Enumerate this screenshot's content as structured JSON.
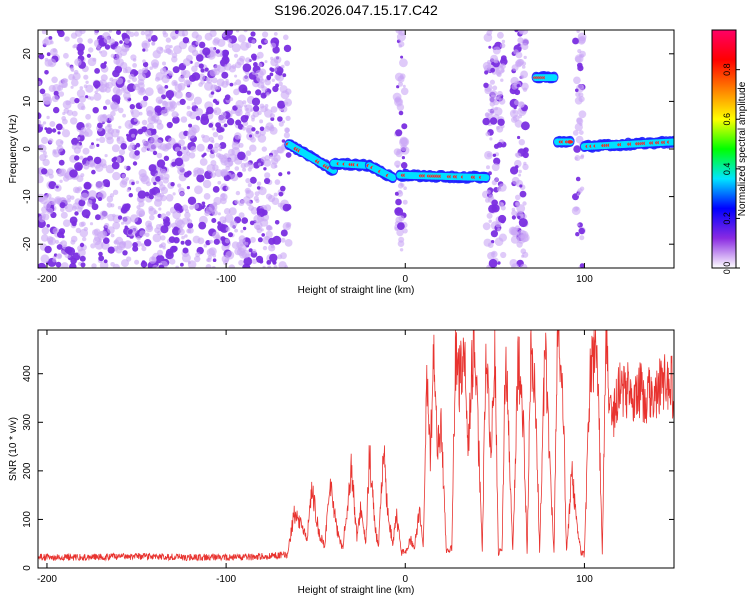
{
  "title": "S196.2026.047.15.17.C42",
  "colors": {
    "snr_line": "#e8332f",
    "track_core": "#ff2020",
    "track_halo": "#00e0ff",
    "track_edge": "#2020ff",
    "noise": "#7a2ee0",
    "noise_light": "#c9a6f5"
  },
  "chart_data": [
    {
      "type": "heatmap",
      "name": "spectrogram",
      "xlabel": "Height of straight line (km)",
      "ylabel": "Frequency (Hz)",
      "xlim": [
        -205,
        150
      ],
      "ylim": [
        -25,
        25
      ],
      "x_ticks": [
        -200,
        -100,
        0,
        100
      ],
      "x_tick_labels": [
        "-200",
        "-100",
        "0",
        "100"
      ],
      "y_ticks": [
        -20,
        -10,
        0,
        10,
        20
      ],
      "y_tick_labels": [
        "-20",
        "-10",
        "0",
        "10",
        "20"
      ],
      "noise_region_km": [
        -205,
        -65
      ],
      "noise_bands_km": [
        [
          -5,
          0
        ],
        [
          45,
          55
        ],
        [
          60,
          68
        ],
        [
          95,
          99
        ]
      ],
      "track_segments": [
        {
          "x_start": -65,
          "x_end": -40,
          "f_start": 1.0,
          "f_end": -4.5
        },
        {
          "x_start": -40,
          "x_end": -20,
          "f_start": -3.0,
          "f_end": -3.5
        },
        {
          "x_start": -20,
          "x_end": -7,
          "f_start": -3.5,
          "f_end": -6.0
        },
        {
          "x_start": -3,
          "x_end": 45,
          "f_start": -5.5,
          "f_end": -6.0
        },
        {
          "x_start": 73,
          "x_end": 83,
          "f_start": 15.0,
          "f_end": 15.0
        },
        {
          "x_start": 85,
          "x_end": 92,
          "f_start": 1.5,
          "f_end": 1.5
        },
        {
          "x_start": 100,
          "x_end": 150,
          "f_start": 0.5,
          "f_end": 1.5
        }
      ],
      "colorbar": {
        "label": "Normalized spectral amplitude",
        "range": [
          0.0,
          0.96
        ],
        "ticks": [
          0.0,
          0.2,
          0.4,
          0.6,
          0.8
        ],
        "tick_labels": [
          "0.0",
          "0.2",
          "0.4",
          "0.6",
          "0.8"
        ],
        "stops": [
          "#ffffff",
          "#8a2be2",
          "#0000ff",
          "#00e5ff",
          "#00ff00",
          "#ffff00",
          "#ff8000",
          "#ff0000",
          "#ff0066"
        ]
      }
    },
    {
      "type": "line",
      "name": "snr",
      "xlabel": "Height of straight line (km)",
      "ylabel": "SNR (10 * v/v)",
      "xlim": [
        -205,
        150
      ],
      "ylim": [
        0,
        490
      ],
      "x_ticks": [
        -200,
        -100,
        0,
        100
      ],
      "x_tick_labels": [
        "-200",
        "-100",
        "0",
        "100"
      ],
      "y_ticks": [
        0,
        100,
        200,
        300,
        400
      ],
      "y_tick_labels": [
        "0",
        "100",
        "200",
        "300",
        "400"
      ],
      "series": [
        {
          "name": "SNR",
          "x": [
            -205,
            -180,
            -150,
            -120,
            -90,
            -66,
            -62,
            -58,
            -55,
            -52,
            -48,
            -45,
            -42,
            -38,
            -35,
            -30,
            -27,
            -25,
            -22,
            -20,
            -17,
            -15,
            -12,
            -10,
            -7,
            -5,
            -2,
            0,
            3,
            5,
            8,
            10,
            12,
            14,
            16,
            18,
            20,
            23,
            26,
            28,
            30,
            33,
            35,
            38,
            40,
            43,
            45,
            48,
            50,
            52,
            54,
            56,
            58,
            60,
            63,
            66,
            68,
            70,
            73,
            75,
            78,
            80,
            83,
            85,
            88,
            90,
            93,
            95,
            98,
            100,
            103,
            106,
            108,
            110,
            112,
            115,
            120,
            125,
            130,
            135,
            140,
            145,
            150
          ],
          "y": [
            20,
            20,
            22,
            20,
            20,
            25,
            110,
            90,
            60,
            160,
            70,
            45,
            170,
            80,
            40,
            210,
            60,
            120,
            50,
            240,
            90,
            40,
            250,
            120,
            50,
            110,
            30,
            30,
            60,
            40,
            120,
            40,
            380,
            240,
            440,
            250,
            300,
            30,
            40,
            440,
            380,
            470,
            240,
            460,
            350,
            40,
            440,
            240,
            440,
            30,
            40,
            450,
            260,
            30,
            440,
            300,
            30,
            440,
            330,
            30,
            450,
            280,
            30,
            470,
            360,
            30,
            200,
            120,
            30,
            25,
            380,
            460,
            330,
            30,
            480,
            300,
            380,
            360,
            370,
            350,
            360,
            380,
            370
          ]
        }
      ]
    }
  ]
}
